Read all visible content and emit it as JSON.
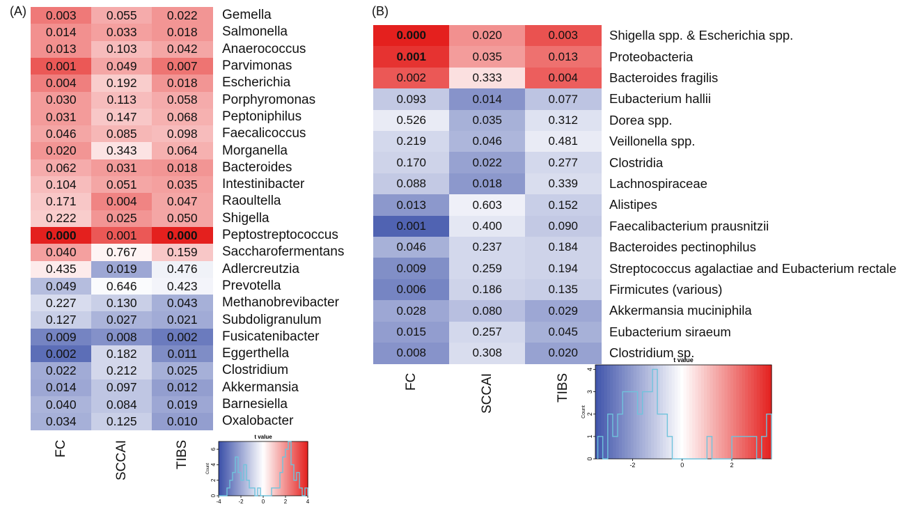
{
  "panels": {
    "a": {
      "label": "(A)"
    },
    "b": {
      "label": "(B)"
    }
  },
  "colors": {
    "low": "#3a4fa8",
    "mid": "#ffffff",
    "high": "#e4201e",
    "histogram_line": "#6fc3dc"
  },
  "chart_data": [
    {
      "type": "heatmap",
      "columns": [
        "FC",
        "SCCAI",
        "TIBS"
      ],
      "rows": [
        "Gemella",
        "Salmonella",
        "Anaerococcus",
        "Parvimonas",
        "Escherichia",
        "Porphyromonas",
        "Peptoniphilus",
        "Faecalicoccus",
        "Morganella",
        "Bacteroides",
        "Intestinibacter",
        "Raoultella",
        "Shigella",
        "Peptostreptococcus",
        "Saccharofermentans",
        "Adlercreutzia",
        "Prevotella",
        "Methanobrevibacter",
        "Subdoligranulum",
        "Fusicatenibacter",
        "Eggerthella",
        "Clostridium",
        "Akkermansia",
        "Barnesiella",
        "Oxalobacter"
      ],
      "values": [
        [
          "0.003",
          "0.055",
          "0.022"
        ],
        [
          "0.014",
          "0.033",
          "0.018"
        ],
        [
          "0.013",
          "0.103",
          "0.042"
        ],
        [
          "0.001",
          "0.049",
          "0.007"
        ],
        [
          "0.004",
          "0.192",
          "0.018"
        ],
        [
          "0.030",
          "0.113",
          "0.058"
        ],
        [
          "0.031",
          "0.147",
          "0.068"
        ],
        [
          "0.046",
          "0.085",
          "0.098"
        ],
        [
          "0.020",
          "0.343",
          "0.064"
        ],
        [
          "0.062",
          "0.031",
          "0.018"
        ],
        [
          "0.104",
          "0.051",
          "0.035"
        ],
        [
          "0.171",
          "0.004",
          "0.047"
        ],
        [
          "0.222",
          "0.025",
          "0.050"
        ],
        [
          "0.000",
          "0.001",
          "0.000"
        ],
        [
          "0.040",
          "0.767",
          "0.159"
        ],
        [
          "0.435",
          "0.019",
          "0.476"
        ],
        [
          "0.049",
          "0.646",
          "0.423"
        ],
        [
          "0.227",
          "0.130",
          "0.043"
        ],
        [
          "0.127",
          "0.027",
          "0.021"
        ],
        [
          "0.009",
          "0.008",
          "0.002"
        ],
        [
          "0.002",
          "0.182",
          "0.011"
        ],
        [
          "0.022",
          "0.212",
          "0.025"
        ],
        [
          "0.014",
          "0.097",
          "0.012"
        ],
        [
          "0.040",
          "0.084",
          "0.019"
        ],
        [
          "0.034",
          "0.125",
          "0.010"
        ]
      ],
      "t_values": [
        [
          2.4,
          1.5,
          1.9
        ],
        [
          2.0,
          1.7,
          1.9
        ],
        [
          2.0,
          1.2,
          1.6
        ],
        [
          3.0,
          1.6,
          2.5
        ],
        [
          2.3,
          0.9,
          1.9
        ],
        [
          1.8,
          1.2,
          1.5
        ],
        [
          1.8,
          1.0,
          1.4
        ],
        [
          1.6,
          1.3,
          1.2
        ],
        [
          1.9,
          0.5,
          1.4
        ],
        [
          1.5,
          1.8,
          1.9
        ],
        [
          1.2,
          1.6,
          1.7
        ],
        [
          1.0,
          2.2,
          1.6
        ],
        [
          0.9,
          1.9,
          1.6
        ],
        [
          4.0,
          3.0,
          4.0
        ],
        [
          1.7,
          0.2,
          1.0
        ],
        [
          0.35,
          -2.0,
          -0.3
        ],
        [
          -1.5,
          -0.1,
          -0.25
        ],
        [
          -0.8,
          -1.1,
          -1.8
        ],
        [
          -1.1,
          -1.7,
          -1.9
        ],
        [
          -2.8,
          -2.5,
          -3.0
        ],
        [
          -3.3,
          -0.9,
          -2.6
        ],
        [
          -1.9,
          -0.9,
          -1.8
        ],
        [
          -2.0,
          -1.3,
          -2.2
        ],
        [
          -1.7,
          -1.3,
          -2.0
        ],
        [
          -1.8,
          -1.1,
          -2.2
        ]
      ],
      "bold_cells": [
        [
          13,
          0
        ],
        [
          13,
          2
        ]
      ],
      "legend": {
        "title": "t value",
        "ylabel": "Count",
        "x_ticks": [
          "-4",
          "-2",
          "0",
          "2",
          "4"
        ],
        "y_ticks": [
          "0",
          "2",
          "4",
          "6"
        ],
        "xlim": [
          -4,
          4
        ],
        "ylim": [
          0,
          7
        ],
        "histogram": {
          "bin_edges": [
            -4,
            -3.75,
            -3.5,
            -3.25,
            -3,
            -2.75,
            -2.5,
            -2.25,
            -2,
            -1.75,
            -1.5,
            -1.25,
            -1,
            -0.75,
            -0.5,
            -0.25,
            0,
            0.25,
            0.5,
            0.75,
            1,
            1.25,
            1.5,
            1.75,
            2,
            2.25,
            2.5,
            2.75,
            3,
            3.25,
            3.5,
            3.75,
            4
          ],
          "counts": [
            0,
            0,
            0,
            1,
            2,
            3,
            5,
            3,
            2,
            4,
            2,
            1,
            1,
            0,
            1,
            0,
            0,
            0,
            0,
            1,
            1,
            1,
            3,
            5,
            6,
            7,
            4,
            2,
            3,
            1,
            0,
            1
          ]
        }
      }
    },
    {
      "type": "heatmap",
      "columns": [
        "FC",
        "SCCAI",
        "TIBS"
      ],
      "rows": [
        "Shigella spp. & Escherichia spp.",
        "Proteobacteria",
        "Bacteroides fragilis",
        "Eubacterium hallii",
        "Dorea spp.",
        "Veillonella spp.",
        "Clostridia",
        "Lachnospiraceae",
        "Alistipes",
        "Faecalibacterium prausnitzii",
        "Bacteroides pectinophilus",
        "Streptococcus agalactiae and Eubacterium rectale",
        "Firmicutes (various)",
        "Akkermansia muciniphila",
        "Eubacterium siraeum",
        "Clostridium sp."
      ],
      "values": [
        [
          "0.000",
          "0.020",
          "0.003"
        ],
        [
          "0.001",
          "0.035",
          "0.013"
        ],
        [
          "0.002",
          "0.333",
          "0.004"
        ],
        [
          "0.093",
          "0.014",
          "0.077"
        ],
        [
          "0.526",
          "0.035",
          "0.312"
        ],
        [
          "0.219",
          "0.046",
          "0.481"
        ],
        [
          "0.170",
          "0.022",
          "0.277"
        ],
        [
          "0.088",
          "0.018",
          "0.339"
        ],
        [
          "0.013",
          "0.603",
          "0.152"
        ],
        [
          "0.001",
          "0.400",
          "0.090"
        ],
        [
          "0.046",
          "0.237",
          "0.184"
        ],
        [
          "0.009",
          "0.259",
          "0.194"
        ],
        [
          "0.006",
          "0.186",
          "0.135"
        ],
        [
          "0.028",
          "0.080",
          "0.029"
        ],
        [
          "0.015",
          "0.257",
          "0.045"
        ],
        [
          "0.008",
          "0.308",
          "0.020"
        ]
      ],
      "t_values": [
        [
          3.6,
          1.8,
          2.8
        ],
        [
          3.3,
          1.6,
          2.3
        ],
        [
          2.7,
          0.5,
          2.6
        ],
        [
          -1.1,
          -2.2,
          -1.2
        ],
        [
          -0.4,
          -1.6,
          -0.6
        ],
        [
          -0.8,
          -1.5,
          -0.4
        ],
        [
          -0.9,
          -1.9,
          -0.8
        ],
        [
          -1.1,
          -2.1,
          -0.7
        ],
        [
          -2.1,
          -0.3,
          -1.0
        ],
        [
          -3.2,
          -0.5,
          -1.1
        ],
        [
          -1.6,
          -0.8,
          -0.9
        ],
        [
          -2.3,
          -0.8,
          -0.9
        ],
        [
          -2.5,
          -0.9,
          -1.0
        ],
        [
          -1.8,
          -1.3,
          -1.8
        ],
        [
          -2.0,
          -0.8,
          -1.6
        ],
        [
          -2.2,
          -0.7,
          -1.9
        ]
      ],
      "bold_cells": [
        [
          0,
          0
        ],
        [
          1,
          0
        ]
      ],
      "legend": {
        "title": "t value",
        "ylabel": "Count",
        "x_ticks": [
          "-2",
          "0",
          "2"
        ],
        "y_ticks": [
          "0",
          "1",
          "2",
          "3",
          "4"
        ],
        "xlim": [
          -3.5,
          3.6
        ],
        "ylim": [
          0,
          4.2
        ],
        "histogram": {
          "bin_edges": [
            -3.4,
            -3.2,
            -3.0,
            -2.8,
            -2.6,
            -2.4,
            -2.2,
            -2.0,
            -1.8,
            -1.6,
            -1.4,
            -1.2,
            -1.0,
            -0.8,
            -0.6,
            -0.4,
            -0.2,
            0,
            0.2,
            0.4,
            0.6,
            0.8,
            1.0,
            1.2,
            1.4,
            1.6,
            1.8,
            2.0,
            2.2,
            2.4,
            2.6,
            2.8,
            3.0,
            3.2,
            3.4,
            3.6
          ],
          "counts": [
            1,
            0,
            2,
            1,
            2,
            3,
            3,
            3,
            2,
            3,
            3,
            4,
            2,
            2,
            1,
            0,
            0,
            0,
            0,
            0,
            0,
            0,
            1,
            0,
            0,
            0,
            0,
            1,
            1,
            1,
            1,
            1,
            0,
            1,
            2
          ]
        }
      }
    }
  ]
}
